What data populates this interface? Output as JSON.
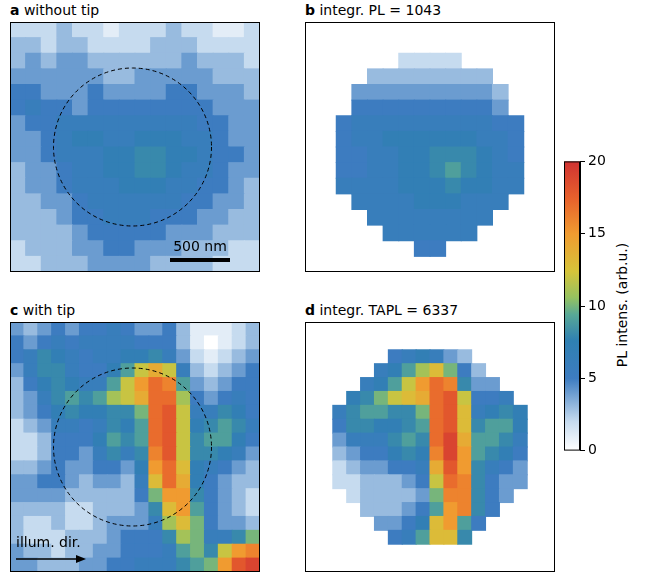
{
  "chart_data": [
    {
      "type": "heatmap",
      "letter": "a",
      "title": "without tip",
      "xlim": [
        -0.5,
        15.5
      ],
      "ylim": [
        -0.5,
        15.5
      ],
      "tick_labels": false,
      "annotations": [
        {
          "type": "scale_bar",
          "text": "500 nm"
        }
      ],
      "cells": [
        [
          2,
          2,
          2,
          3,
          2,
          2,
          1,
          2,
          2,
          2,
          3,
          2,
          2,
          1,
          1,
          2
        ],
        [
          3,
          3,
          2,
          3,
          3,
          2,
          2,
          2,
          2,
          3,
          3,
          3,
          2,
          2,
          2,
          2
        ],
        [
          3,
          4,
          3,
          4,
          4,
          3,
          3,
          3,
          3,
          3,
          3,
          4,
          3,
          3,
          3,
          2
        ],
        [
          4,
          4,
          4,
          4,
          4,
          4,
          3,
          3,
          4,
          4,
          4,
          4,
          4,
          3,
          3,
          3
        ],
        [
          5,
          5,
          4,
          4,
          4,
          5,
          4,
          4,
          4,
          4,
          5,
          5,
          4,
          4,
          4,
          3
        ],
        [
          5,
          6,
          5,
          5,
          4,
          5,
          5,
          5,
          5,
          5,
          5,
          5,
          5,
          4,
          4,
          4
        ],
        [
          4,
          5,
          5,
          6,
          6,
          6,
          6,
          6,
          6,
          6,
          6,
          6,
          5,
          5,
          4,
          4
        ],
        [
          4,
          4,
          5,
          6,
          7,
          7,
          6,
          6,
          7,
          7,
          7,
          6,
          6,
          5,
          4,
          4
        ],
        [
          4,
          4,
          5,
          6,
          6,
          6,
          7,
          7,
          8,
          8,
          7,
          7,
          6,
          5,
          5,
          4
        ],
        [
          3,
          4,
          4,
          5,
          6,
          6,
          7,
          7,
          8,
          8,
          7,
          6,
          6,
          5,
          4,
          4
        ],
        [
          3,
          4,
          4,
          5,
          6,
          6,
          6,
          7,
          7,
          7,
          6,
          6,
          5,
          5,
          4,
          3
        ],
        [
          3,
          3,
          4,
          4,
          5,
          6,
          6,
          6,
          6,
          6,
          6,
          5,
          5,
          4,
          4,
          3
        ],
        [
          3,
          3,
          3,
          4,
          5,
          5,
          6,
          6,
          6,
          5,
          5,
          5,
          4,
          4,
          3,
          3
        ],
        [
          3,
          3,
          3,
          3,
          4,
          5,
          5,
          5,
          5,
          5,
          4,
          4,
          4,
          3,
          3,
          3
        ],
        [
          2,
          3,
          3,
          3,
          4,
          4,
          5,
          5,
          4,
          4,
          4,
          3,
          3,
          3,
          2,
          2
        ],
        [
          2,
          2,
          3,
          3,
          3,
          4,
          4,
          4,
          4,
          3,
          3,
          3,
          3,
          2,
          2,
          2
        ]
      ]
    },
    {
      "type": "heatmap",
      "letter": "b",
      "title": "integr. PL = 1043",
      "xlim": [
        -0.5,
        15.5
      ],
      "ylim": [
        -0.5,
        15.5
      ],
      "tick_labels": false,
      "cells": [
        [
          null,
          null,
          null,
          null,
          null,
          null,
          null,
          null,
          null,
          null,
          null,
          null,
          null,
          null,
          null,
          null
        ],
        [
          null,
          null,
          null,
          null,
          null,
          null,
          null,
          null,
          null,
          null,
          null,
          null,
          null,
          null,
          null,
          null
        ],
        [
          null,
          null,
          null,
          null,
          null,
          null,
          2,
          2,
          2,
          2,
          null,
          null,
          null,
          null,
          null,
          null
        ],
        [
          null,
          null,
          null,
          null,
          3,
          3,
          3,
          3,
          3,
          3,
          3,
          3,
          null,
          null,
          null,
          null
        ],
        [
          null,
          null,
          null,
          4,
          4,
          4,
          4,
          4,
          4,
          4,
          4,
          4,
          3,
          null,
          null,
          null
        ],
        [
          null,
          null,
          null,
          5,
          5,
          5,
          5,
          5,
          5,
          5,
          5,
          5,
          4,
          null,
          null,
          null
        ],
        [
          null,
          null,
          5,
          6,
          6,
          6,
          6,
          6,
          6,
          6,
          6,
          6,
          5,
          5,
          null,
          null
        ],
        [
          null,
          null,
          5,
          6,
          6,
          7,
          7,
          7,
          7,
          7,
          7,
          6,
          6,
          5,
          null,
          null
        ],
        [
          null,
          null,
          5,
          5,
          6,
          6,
          7,
          7,
          8,
          8,
          8,
          7,
          6,
          5,
          null,
          null
        ],
        [
          null,
          null,
          5,
          5,
          6,
          6,
          7,
          7,
          8,
          9,
          8,
          7,
          6,
          6,
          null,
          null
        ],
        [
          null,
          null,
          6,
          6,
          6,
          6,
          7,
          7,
          7,
          8,
          7,
          7,
          6,
          6,
          null,
          null
        ],
        [
          null,
          null,
          null,
          6,
          6,
          6,
          6,
          7,
          7,
          7,
          6,
          6,
          6,
          null,
          null,
          null
        ],
        [
          null,
          null,
          null,
          null,
          6,
          6,
          6,
          6,
          6,
          6,
          6,
          6,
          null,
          null,
          null,
          null
        ],
        [
          null,
          null,
          null,
          null,
          null,
          6,
          6,
          6,
          6,
          6,
          6,
          null,
          null,
          null,
          null,
          null
        ],
        [
          null,
          null,
          null,
          null,
          null,
          null,
          null,
          5,
          5,
          null,
          null,
          null,
          null,
          null,
          null,
          null
        ],
        [
          null,
          null,
          null,
          null,
          null,
          null,
          null,
          null,
          null,
          null,
          null,
          null,
          null,
          null,
          null,
          null
        ]
      ]
    },
    {
      "type": "heatmap",
      "letter": "c",
      "title": "with tip",
      "xlim": [
        -0.5,
        17.5
      ],
      "ylim": [
        -0.5,
        17.5
      ],
      "tick_labels": false,
      "annotations": [
        {
          "type": "arrow",
          "text": "illum. dir."
        }
      ],
      "cells": [
        [
          4,
          3,
          4,
          5,
          4,
          5,
          5,
          6,
          5,
          4,
          4,
          5,
          3,
          1,
          1,
          1,
          2,
          3
        ],
        [
          5,
          4,
          5,
          6,
          5,
          6,
          6,
          6,
          6,
          5,
          5,
          5,
          3,
          1,
          0,
          1,
          2,
          3
        ],
        [
          5,
          6,
          8,
          7,
          6,
          5,
          6,
          6,
          7,
          7,
          8,
          6,
          4,
          2,
          1,
          2,
          3,
          4
        ],
        [
          4,
          6,
          8,
          8,
          6,
          5,
          5,
          7,
          9,
          12,
          14,
          12,
          6,
          3,
          2,
          3,
          4,
          5
        ],
        [
          3,
          5,
          7,
          8,
          7,
          6,
          6,
          9,
          12,
          15,
          17,
          16,
          9,
          4,
          3,
          4,
          5,
          5
        ],
        [
          3,
          4,
          6,
          8,
          9,
          8,
          9,
          11,
          12,
          14,
          17,
          17,
          11,
          5,
          4,
          5,
          6,
          5
        ],
        [
          3,
          4,
          5,
          7,
          8,
          7,
          7,
          8,
          8,
          10,
          17,
          18,
          12,
          6,
          6,
          8,
          7,
          5
        ],
        [
          2,
          3,
          4,
          6,
          6,
          5,
          6,
          8,
          7,
          9,
          17,
          18,
          12,
          7,
          8,
          9,
          8,
          6
        ],
        [
          2,
          2,
          3,
          5,
          5,
          5,
          7,
          9,
          8,
          9,
          17,
          18,
          12,
          8,
          9,
          9,
          7,
          5
        ],
        [
          2,
          2,
          3,
          5,
          5,
          4,
          6,
          8,
          6,
          8,
          16,
          18,
          12,
          8,
          8,
          7,
          6,
          4
        ],
        [
          3,
          3,
          4,
          5,
          4,
          4,
          5,
          5,
          4,
          7,
          15,
          17,
          13,
          7,
          6,
          5,
          4,
          3
        ],
        [
          4,
          4,
          5,
          5,
          4,
          3,
          4,
          4,
          3,
          6,
          13,
          17,
          14,
          7,
          5,
          4,
          3,
          3
        ],
        [
          4,
          4,
          4,
          4,
          3,
          3,
          3,
          3,
          3,
          5,
          10,
          15,
          15,
          8,
          5,
          4,
          3,
          2
        ],
        [
          3,
          3,
          3,
          3,
          2,
          2,
          3,
          3,
          3,
          4,
          8,
          13,
          15,
          9,
          5,
          4,
          3,
          2
        ],
        [
          3,
          2,
          2,
          3,
          2,
          2,
          3,
          4,
          4,
          4,
          6,
          11,
          13,
          10,
          5,
          4,
          4,
          3
        ],
        [
          3,
          2,
          2,
          2,
          3,
          3,
          3,
          4,
          5,
          5,
          5,
          8,
          11,
          10,
          6,
          6,
          8,
          10
        ],
        [
          4,
          3,
          3,
          2,
          3,
          3,
          4,
          4,
          5,
          5,
          5,
          6,
          9,
          10,
          8,
          12,
          15,
          16
        ],
        [
          4,
          4,
          3,
          3,
          3,
          4,
          4,
          5,
          5,
          6,
          6,
          6,
          8,
          9,
          10,
          15,
          18,
          19
        ]
      ]
    },
    {
      "type": "heatmap",
      "letter": "d",
      "title": "integr. TAPL = 6337",
      "xlim": [
        -0.5,
        17.5
      ],
      "ylim": [
        -0.5,
        17.5
      ],
      "tick_labels": false,
      "cells": [
        [
          null,
          null,
          null,
          null,
          null,
          null,
          null,
          null,
          null,
          null,
          null,
          null,
          null,
          null,
          null,
          null,
          null,
          null
        ],
        [
          null,
          null,
          null,
          null,
          null,
          null,
          null,
          null,
          null,
          null,
          null,
          null,
          null,
          null,
          null,
          null,
          null,
          null
        ],
        [
          null,
          null,
          null,
          null,
          null,
          null,
          5,
          6,
          7,
          6,
          4,
          3,
          null,
          null,
          null,
          null,
          null,
          null
        ],
        [
          null,
          null,
          null,
          null,
          null,
          6,
          7,
          9,
          11,
          13,
          10,
          5,
          3,
          null,
          null,
          null,
          null,
          null
        ],
        [
          null,
          null,
          null,
          null,
          6,
          7,
          9,
          12,
          15,
          17,
          16,
          8,
          4,
          4,
          null,
          null,
          null,
          null
        ],
        [
          null,
          null,
          null,
          7,
          8,
          10,
          12,
          13,
          14,
          17,
          18,
          12,
          5,
          5,
          6,
          null,
          null,
          null
        ],
        [
          null,
          null,
          6,
          8,
          9,
          9,
          8,
          8,
          10,
          17,
          18,
          13,
          6,
          7,
          8,
          7,
          null,
          null
        ],
        [
          null,
          null,
          5,
          8,
          8,
          7,
          7,
          8,
          9,
          17,
          18,
          13,
          8,
          9,
          9,
          7,
          null,
          null
        ],
        [
          null,
          null,
          4,
          6,
          6,
          6,
          8,
          9,
          8,
          17,
          19,
          14,
          9,
          9,
          8,
          6,
          null,
          null
        ],
        [
          null,
          null,
          3,
          4,
          5,
          5,
          7,
          8,
          7,
          16,
          19,
          15,
          9,
          8,
          7,
          5,
          null,
          null
        ],
        [
          null,
          null,
          2,
          3,
          4,
          4,
          5,
          5,
          6,
          14,
          18,
          15,
          8,
          6,
          5,
          4,
          null,
          null
        ],
        [
          null,
          null,
          2,
          2,
          3,
          3,
          3,
          4,
          5,
          12,
          17,
          16,
          8,
          5,
          4,
          4,
          null,
          null
        ],
        [
          null,
          null,
          null,
          2,
          3,
          3,
          3,
          3,
          4,
          10,
          16,
          16,
          8,
          5,
          4,
          null,
          null,
          null
        ],
        [
          null,
          null,
          null,
          null,
          3,
          3,
          3,
          4,
          5,
          9,
          15,
          16,
          8,
          5,
          null,
          null,
          null,
          null
        ],
        [
          null,
          null,
          null,
          null,
          null,
          4,
          4,
          5,
          7,
          13,
          15,
          9,
          5,
          null,
          null,
          null,
          null,
          null
        ],
        [
          null,
          null,
          null,
          null,
          null,
          null,
          5,
          6,
          9,
          13,
          13,
          8,
          null,
          null,
          null,
          null,
          null,
          null
        ],
        [
          null,
          null,
          null,
          null,
          null,
          null,
          null,
          null,
          null,
          null,
          null,
          null,
          null,
          null,
          null,
          null,
          null,
          null
        ],
        [
          null,
          null,
          null,
          null,
          null,
          null,
          null,
          null,
          null,
          null,
          null,
          null,
          null,
          null,
          null,
          null,
          null,
          null
        ]
      ]
    }
  ],
  "colorbar": {
    "lim": [
      0,
      20
    ],
    "ticks": [
      0,
      5,
      10,
      15,
      20
    ],
    "label": "PL intens. (arb.u.)"
  }
}
